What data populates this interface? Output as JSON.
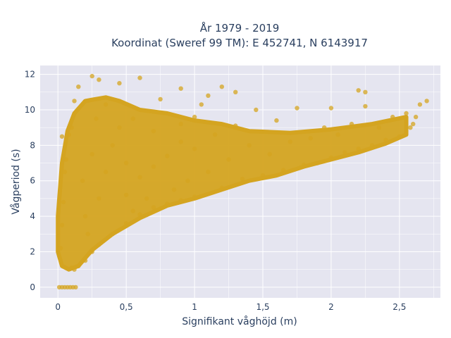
{
  "chart_data": {
    "type": "scatter",
    "title": "År 1979 - 2019",
    "subtitle": "Koordinat (Sweref 99 TM): E 452741, N 6143917",
    "xlabel": "Signifikant våghöjd (m)",
    "ylabel": "Vågperiod (s)",
    "xlim": [
      -0.13,
      2.8
    ],
    "ylim": [
      -0.6,
      12.5
    ],
    "x_ticks": [
      0,
      0.5,
      1,
      1.5,
      2,
      2.5
    ],
    "x_tick_labels": [
      "0",
      "0,5",
      "1",
      "1,5",
      "2",
      "2,5"
    ],
    "y_ticks": [
      0,
      2,
      4,
      6,
      8,
      10,
      12
    ],
    "y_tick_labels": [
      "0",
      "2",
      "4",
      "6",
      "8",
      "10",
      "12"
    ],
    "grid": true,
    "legend": "none",
    "colors": {
      "marker": "#d4a420",
      "plot_bg": "#e5e5f0",
      "grid": "#ffffff",
      "text": "#2a3f5f"
    },
    "series": [
      {
        "values": [
          [
            0.01,
            0
          ],
          [
            0.03,
            0
          ],
          [
            0.05,
            0
          ],
          [
            0.07,
            0
          ],
          [
            0.09,
            0
          ],
          [
            0.11,
            0
          ],
          [
            0.13,
            0
          ],
          [
            0.02,
            2.2
          ],
          [
            0.03,
            3.5
          ],
          [
            0.04,
            4.8
          ],
          [
            0.05,
            6.5
          ],
          [
            0.03,
            8.5
          ],
          [
            0.06,
            7.2
          ],
          [
            0.08,
            8.6
          ],
          [
            0.1,
            1.1
          ],
          [
            0.12,
            1.0
          ],
          [
            0.15,
            1.2
          ],
          [
            0.2,
            1.5
          ],
          [
            0.25,
            2.0
          ],
          [
            0.3,
            2.4
          ],
          [
            0.1,
            9.0
          ],
          [
            0.12,
            10.5
          ],
          [
            0.15,
            11.3
          ],
          [
            0.25,
            11.9
          ],
          [
            0.3,
            11.7
          ],
          [
            0.45,
            11.5
          ],
          [
            0.6,
            11.8
          ],
          [
            0.4,
            3.0
          ],
          [
            0.5,
            3.6
          ],
          [
            0.6,
            4.1
          ],
          [
            0.7,
            4.5
          ],
          [
            0.8,
            4.7
          ],
          [
            0.9,
            4.9
          ],
          [
            1.0,
            5.1
          ],
          [
            0.3,
            5.0
          ],
          [
            0.35,
            6.5
          ],
          [
            0.4,
            8.0
          ],
          [
            0.5,
            7.0
          ],
          [
            0.55,
            9.5
          ],
          [
            0.6,
            6.2
          ],
          [
            0.7,
            8.8
          ],
          [
            0.75,
            10.6
          ],
          [
            0.8,
            7.4
          ],
          [
            0.9,
            9.2
          ],
          [
            0.95,
            6.0
          ],
          [
            1.0,
            7.8
          ],
          [
            1.05,
            10.3
          ],
          [
            1.1,
            6.5
          ],
          [
            1.15,
            8.6
          ],
          [
            1.2,
            5.6
          ],
          [
            1.25,
            7.2
          ],
          [
            1.3,
            9.1
          ],
          [
            1.35,
            6.1
          ],
          [
            1.4,
            8.0
          ],
          [
            1.45,
            10.0
          ],
          [
            1.5,
            6.3
          ],
          [
            1.55,
            7.5
          ],
          [
            1.6,
            9.4
          ],
          [
            1.65,
            6.6
          ],
          [
            1.7,
            8.2
          ],
          [
            1.75,
            10.1
          ],
          [
            1.8,
            6.9
          ],
          [
            1.85,
            8.4
          ],
          [
            1.9,
            7.0
          ],
          [
            1.95,
            9.0
          ],
          [
            2.0,
            7.3
          ],
          [
            2.05,
            8.6
          ],
          [
            2.1,
            7.6
          ],
          [
            2.15,
            9.2
          ],
          [
            2.2,
            7.8
          ],
          [
            2.25,
            10.2
          ],
          [
            2.3,
            8.0
          ],
          [
            2.35,
            9.0
          ],
          [
            2.4,
            8.3
          ],
          [
            2.45,
            9.6
          ],
          [
            2.5,
            8.5
          ],
          [
            2.55,
            9.8
          ],
          [
            2.6,
            9.2
          ],
          [
            2.65,
            10.3
          ],
          [
            2.7,
            10.5
          ],
          [
            2.58,
            9.0
          ],
          [
            2.62,
            9.6
          ],
          [
            1.3,
            11.0
          ],
          [
            1.2,
            11.3
          ],
          [
            0.9,
            11.2
          ],
          [
            1.1,
            10.8
          ],
          [
            2.2,
            11.1
          ],
          [
            2.25,
            11.0
          ],
          [
            2.0,
            10.1
          ],
          [
            0.2,
            4.0
          ],
          [
            0.22,
            3.0
          ],
          [
            0.18,
            6.0
          ],
          [
            0.25,
            7.5
          ],
          [
            0.28,
            9.5
          ],
          [
            0.35,
            10.3
          ],
          [
            0.45,
            9.0
          ],
          [
            0.5,
            5.2
          ],
          [
            0.55,
            4.3
          ],
          [
            0.65,
            5.0
          ],
          [
            0.7,
            6.8
          ],
          [
            0.85,
            5.5
          ],
          [
            0.9,
            8.2
          ],
          [
            1.0,
            9.6
          ]
        ]
      }
    ]
  }
}
